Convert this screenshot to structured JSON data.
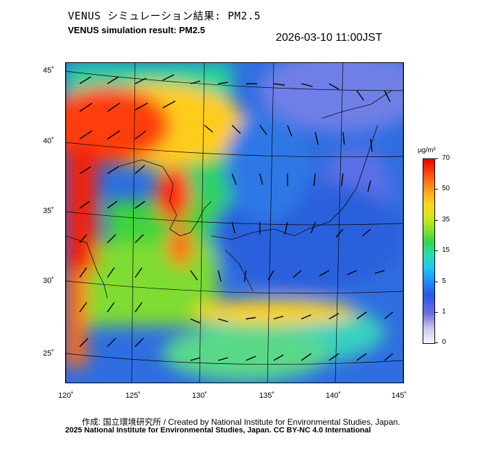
{
  "header": {
    "title_jp": "VENUS シミュレーション結果: PM2.5",
    "title_en": "VENUS simulation result: PM2.5",
    "timestamp": "2026-03-10 11:00JST"
  },
  "axes": {
    "lon_labels": [
      "120˚",
      "125˚",
      "130˚",
      "135˚",
      "140˚",
      "145˚"
    ],
    "lat_labels": [
      "45˚",
      "40˚",
      "35˚",
      "30˚",
      "25˚"
    ]
  },
  "colorbar": {
    "unit": "µg/m³",
    "levels": [
      "70",
      "50",
      "35",
      "15",
      "5",
      "1",
      "0"
    ]
  },
  "footer": {
    "credit_jp": "作成: 国立環境研究所 / Created by National Institute for Environmental Studies, Japan.",
    "credit_en": "2025 National Institute for Environmental Studies, Japan. CC BY-NC 4.0 International"
  }
}
